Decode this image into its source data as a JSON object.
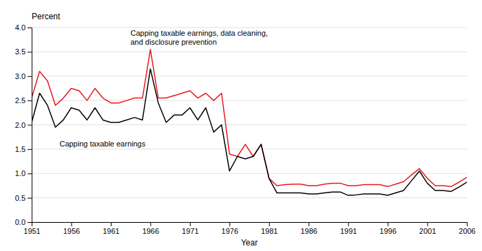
{
  "chart_data": {
    "type": "line",
    "xlabel": "Year",
    "ylabel": "Percent",
    "x": [
      1951,
      1952,
      1953,
      1954,
      1955,
      1956,
      1957,
      1958,
      1959,
      1960,
      1961,
      1962,
      1963,
      1964,
      1965,
      1966,
      1967,
      1968,
      1969,
      1970,
      1971,
      1972,
      1973,
      1974,
      1975,
      1976,
      1977,
      1978,
      1979,
      1980,
      1981,
      1982,
      1983,
      1984,
      1985,
      1986,
      1987,
      1988,
      1989,
      1990,
      1991,
      1992,
      1993,
      1994,
      1995,
      1996,
      1997,
      1998,
      1999,
      2000,
      2001,
      2002,
      2003,
      2004,
      2005,
      2006
    ],
    "series": [
      {
        "color": "#e8171a",
        "values": [
          2.55,
          3.1,
          2.9,
          2.4,
          2.55,
          2.75,
          2.7,
          2.5,
          2.75,
          2.55,
          2.45,
          2.45,
          2.5,
          2.55,
          2.55,
          3.55,
          2.55,
          2.55,
          2.6,
          2.65,
          2.7,
          2.55,
          2.65,
          2.5,
          2.65,
          1.4,
          1.35,
          1.6,
          1.35,
          1.6,
          0.9,
          0.75,
          0.77,
          0.78,
          0.78,
          0.75,
          0.75,
          0.78,
          0.8,
          0.8,
          0.75,
          0.75,
          0.77,
          0.77,
          0.77,
          0.73,
          0.78,
          0.83,
          0.97,
          1.1,
          0.9,
          0.75,
          0.75,
          0.73,
          0.82,
          0.92
        ]
      },
      {
        "color": "#000000",
        "values": [
          2.05,
          2.65,
          2.4,
          1.95,
          2.1,
          2.35,
          2.3,
          2.1,
          2.35,
          2.1,
          2.05,
          2.05,
          2.1,
          2.15,
          2.1,
          3.15,
          2.45,
          2.05,
          2.2,
          2.2,
          2.35,
          2.1,
          2.35,
          1.85,
          2.0,
          1.05,
          1.35,
          1.3,
          1.35,
          1.6,
          0.9,
          0.6,
          0.6,
          0.6,
          0.6,
          0.58,
          0.58,
          0.6,
          0.62,
          0.62,
          0.55,
          0.56,
          0.58,
          0.58,
          0.58,
          0.55,
          0.6,
          0.65,
          0.85,
          1.05,
          0.8,
          0.65,
          0.65,
          0.63,
          0.72,
          0.82
        ]
      }
    ],
    "annotations": [
      "Capping taxable earnings",
      "Capping taxable earnings, data cleaning,\nand disclosure prevention"
    ],
    "xlim": [
      1951,
      2006
    ],
    "xticks": [
      1951,
      1956,
      1961,
      1966,
      1971,
      1976,
      1981,
      1986,
      1991,
      1996,
      2001,
      2006
    ],
    "ylim": [
      0,
      4
    ],
    "yticks": [
      {
        "value": 0,
        "label": "0.0"
      },
      0.5,
      {
        "value": 1,
        "label": "1.0"
      },
      1.5,
      {
        "value": 2,
        "label": "2.0"
      },
      2.5,
      {
        "value": 3,
        "label": "3.0"
      },
      3.5,
      {
        "value": 4,
        "label": "4.0"
      }
    ],
    "grid": true
  }
}
